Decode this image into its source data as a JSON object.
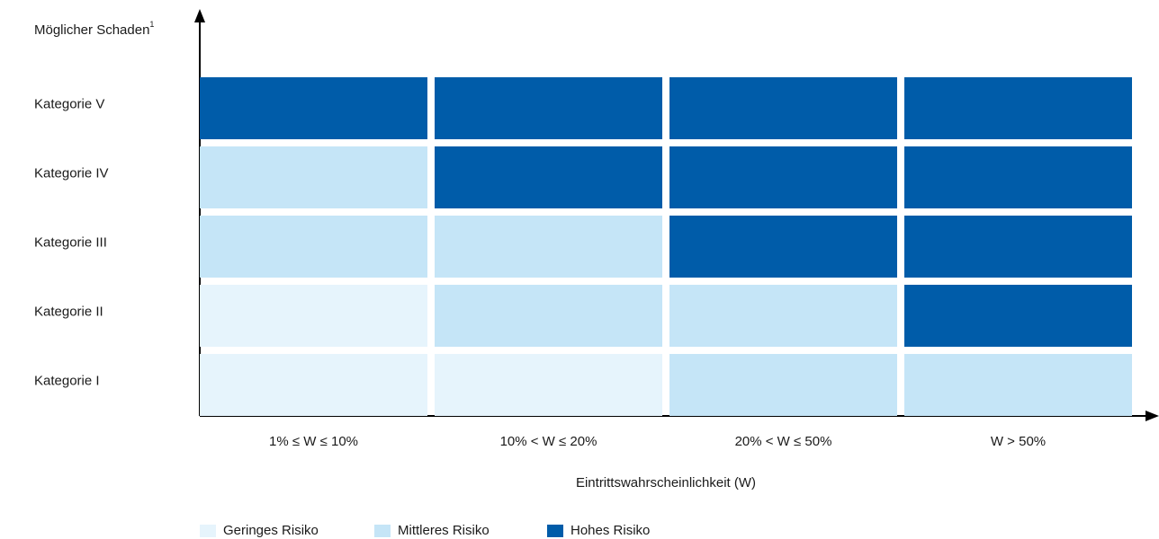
{
  "chart_data": {
    "type": "heatmap",
    "y_label": "Möglicher Schaden",
    "y_label_footnote": "1",
    "x_label": "Eintrittswahrscheinlichkeit (W)",
    "x_categories": [
      "1% ≤ W ≤ 10%",
      "10% < W ≤ 20%",
      "20% < W ≤ 50%",
      "W > 50%"
    ],
    "y_categories": [
      "Kategorie V",
      "Kategorie IV",
      "Kategorie III",
      "Kategorie II",
      "Kategorie I"
    ],
    "legend": [
      {
        "name": "Geringes Risiko",
        "color": "#e6f4fc"
      },
      {
        "name": "Mittleres Risiko",
        "color": "#c5e5f7"
      },
      {
        "name": "Hohes Risiko",
        "color": "#005ca9"
      }
    ],
    "cells": [
      [
        "Hohes Risiko",
        "Hohes Risiko",
        "Hohes Risiko",
        "Hohes Risiko"
      ],
      [
        "Mittleres Risiko",
        "Hohes Risiko",
        "Hohes Risiko",
        "Hohes Risiko"
      ],
      [
        "Mittleres Risiko",
        "Mittleres Risiko",
        "Hohes Risiko",
        "Hohes Risiko"
      ],
      [
        "Geringes Risiko",
        "Mittleres Risiko",
        "Mittleres Risiko",
        "Hohes Risiko"
      ],
      [
        "Geringes Risiko",
        "Geringes Risiko",
        "Mittleres Risiko",
        "Mittleres Risiko"
      ]
    ]
  }
}
